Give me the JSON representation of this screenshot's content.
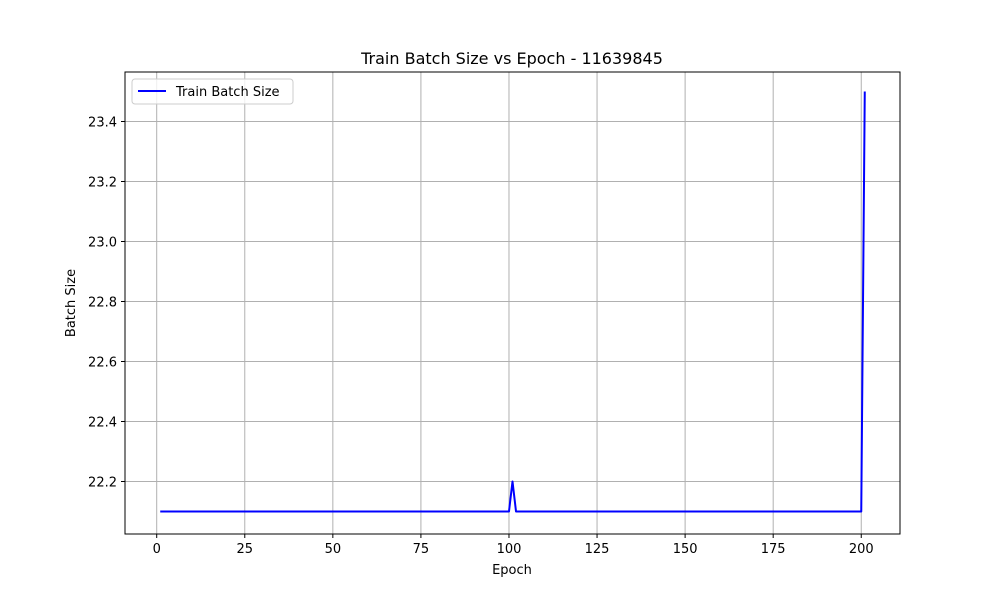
{
  "chart_data": {
    "type": "line",
    "title": "Train Batch Size vs Epoch - 11639845",
    "xlabel": "Epoch",
    "ylabel": "Batch Size",
    "xlim": [
      -9,
      211
    ],
    "ylim": [
      22.025,
      23.565
    ],
    "xticks": [
      0,
      25,
      50,
      75,
      100,
      125,
      150,
      175,
      200
    ],
    "yticks": [
      22.2,
      22.4,
      22.6,
      22.8,
      23.0,
      23.2,
      23.4
    ],
    "xtick_labels": [
      "0",
      "25",
      "50",
      "75",
      "100",
      "125",
      "150",
      "175",
      "200"
    ],
    "ytick_labels": [
      "22.2",
      "22.4",
      "22.6",
      "22.8",
      "23.0",
      "23.2",
      "23.4"
    ],
    "grid": true,
    "legend_position": "top-left",
    "series": [
      {
        "name": "Train Batch Size",
        "color": "#0000ff",
        "x": [
          1,
          100,
          101,
          102,
          200,
          201
        ],
        "y": [
          22.1,
          22.1,
          22.2,
          22.1,
          22.1,
          23.5
        ]
      }
    ]
  }
}
